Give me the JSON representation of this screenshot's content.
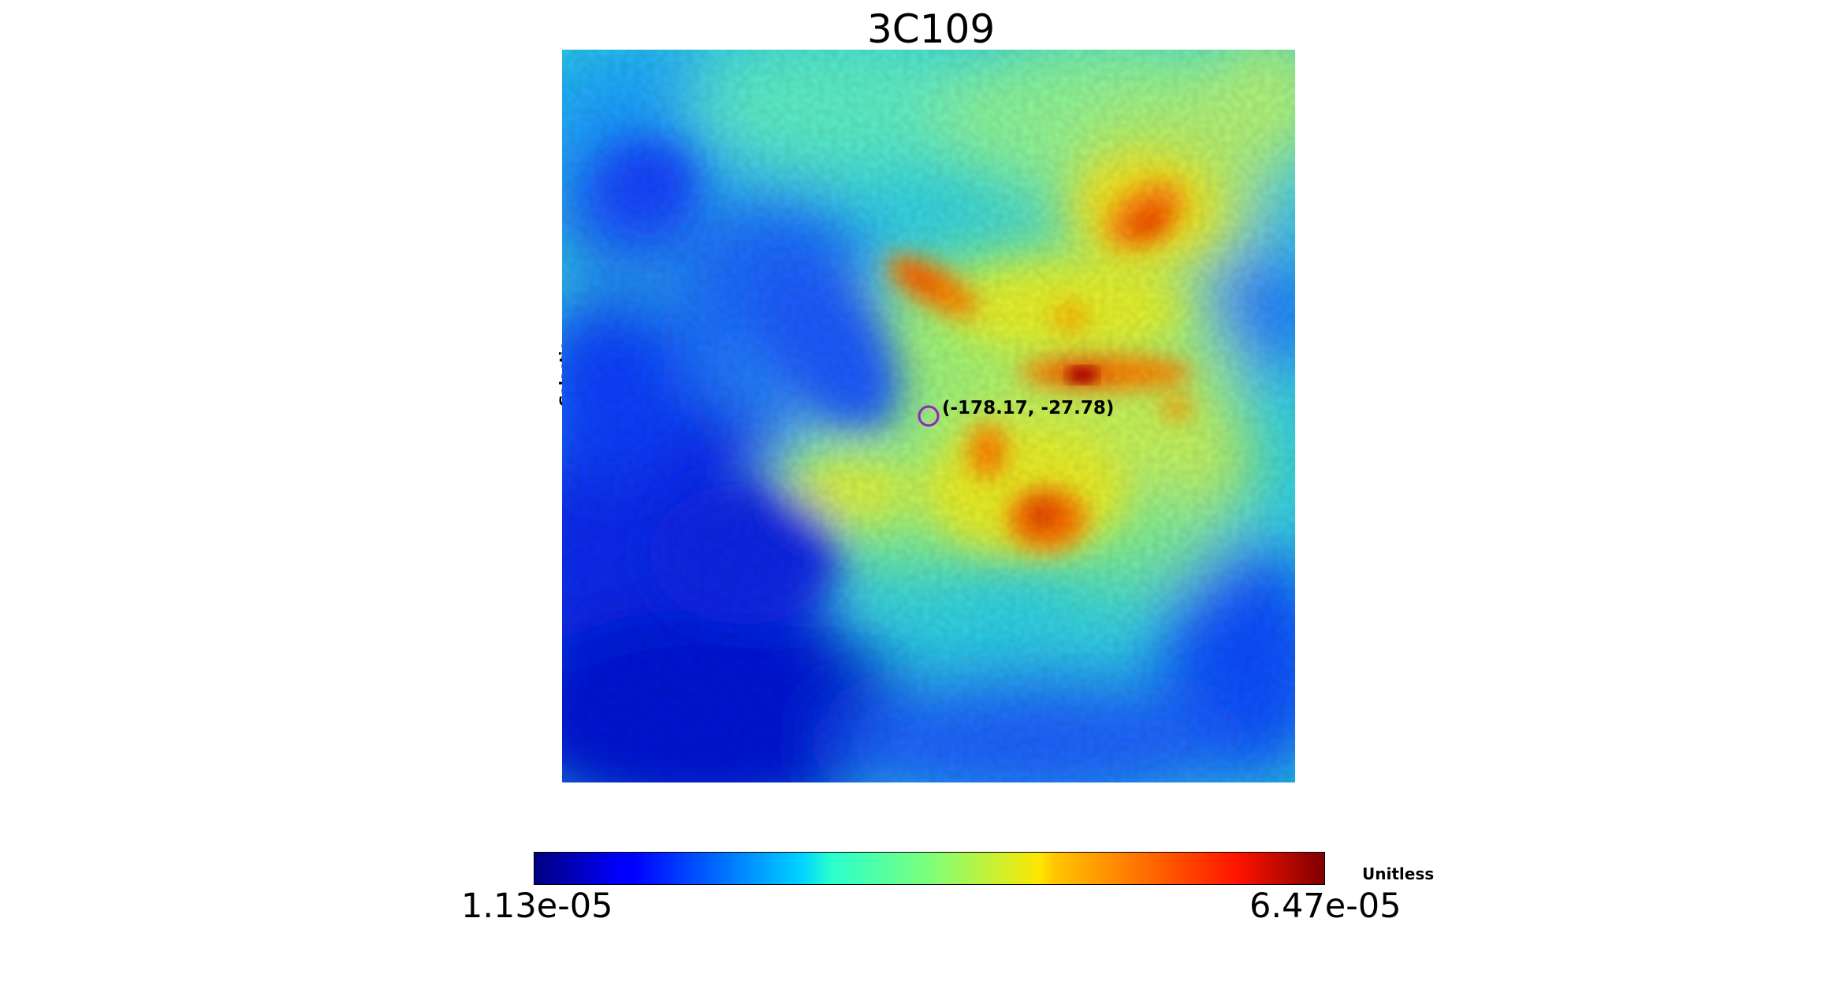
{
  "title": "3C109",
  "coord_system_label": "Galactic",
  "marker": {
    "label": "(-178.17, -27.78)",
    "color": "#9b1fc8"
  },
  "colorbar": {
    "min_label": "1.13e-05",
    "max_label": "6.47e-05",
    "unit_label": "Unitless",
    "colormap": "jet"
  }
}
